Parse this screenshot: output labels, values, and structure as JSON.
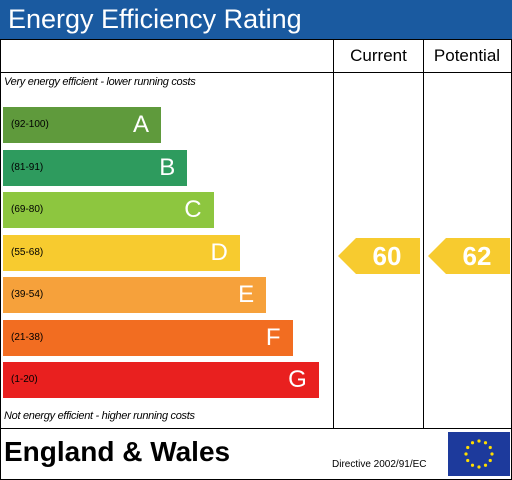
{
  "title": "Energy Efficiency Rating",
  "columns": {
    "current": "Current",
    "potential": "Potential"
  },
  "top_note": "Very energy efficient - lower running costs",
  "bottom_note": "Not energy efficient - higher running costs",
  "footer": {
    "country": "England & Wales",
    "directive": "Directive 2002/91/EC"
  },
  "icons": {
    "flag": "eu-flag-icon"
  },
  "chart_data": {
    "type": "bar",
    "title": "Energy Efficiency Rating",
    "bands": [
      {
        "letter": "A",
        "range": "(92-100)",
        "min": 92,
        "max": 100,
        "color": "#5f9a3c"
      },
      {
        "letter": "B",
        "range": "(81-91)",
        "min": 81,
        "max": 91,
        "color": "#2e9b5e"
      },
      {
        "letter": "C",
        "range": "(69-80)",
        "min": 69,
        "max": 80,
        "color": "#8dc63f"
      },
      {
        "letter": "D",
        "range": "(55-68)",
        "min": 55,
        "max": 68,
        "color": "#f7cb2f"
      },
      {
        "letter": "E",
        "range": "(39-54)",
        "min": 39,
        "max": 54,
        "color": "#f6a13b"
      },
      {
        "letter": "F",
        "range": "(21-38)",
        "min": 21,
        "max": 38,
        "color": "#f26d21"
      },
      {
        "letter": "G",
        "range": "(1-20)",
        "min": 1,
        "max": 20,
        "color": "#e9201f"
      }
    ],
    "current": {
      "value": 60,
      "band": "D"
    },
    "potential": {
      "value": 62,
      "band": "D"
    },
    "arrow_color": "#f7cb2f"
  }
}
